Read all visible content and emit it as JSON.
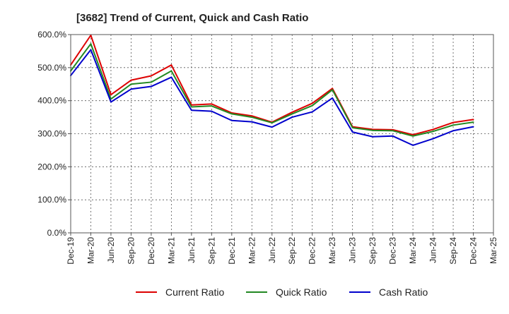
{
  "chart_data": {
    "type": "line",
    "title": "[3682]  Trend of Current, Quick and Cash Ratio",
    "xlabel": "",
    "ylabel": "",
    "grid": true,
    "legend_position": "bottom",
    "ylim": [
      0,
      600
    ],
    "y_ticks": [
      {
        "value": 0,
        "label": "0.0%"
      },
      {
        "value": 100,
        "label": "100.0%"
      },
      {
        "value": 200,
        "label": "200.0%"
      },
      {
        "value": 300,
        "label": "300.0%"
      },
      {
        "value": 400,
        "label": "400.0%"
      },
      {
        "value": 500,
        "label": "500.0%"
      },
      {
        "value": 600,
        "label": "600.0%"
      }
    ],
    "x_tick_labels": [
      "Dec-19",
      "Mar-20",
      "Jun-20",
      "Sep-20",
      "Dec-20",
      "Mar-21",
      "Jun-21",
      "Sep-21",
      "Dec-21",
      "Mar-22",
      "Jun-22",
      "Sep-22",
      "Dec-22",
      "Mar-23",
      "Jun-23",
      "Sep-23",
      "Dec-23",
      "Mar-24",
      "Jun-24",
      "Sep-24",
      "Dec-24",
      "Mar-25"
    ],
    "x_tick_step": 3,
    "x_max_month": 63,
    "points_months": [
      0,
      3,
      6,
      9,
      12,
      15,
      18,
      21,
      24,
      27,
      30,
      33,
      36,
      39,
      42,
      45,
      48,
      51,
      54,
      57,
      60
    ],
    "series": [
      {
        "name": "Current Ratio",
        "color": "#dd0000",
        "values": [
          508,
          598,
          418,
          462,
          475,
          508,
          387,
          390,
          363,
          354,
          335,
          365,
          392,
          437,
          321,
          313,
          312,
          297,
          313,
          334,
          343
        ]
      },
      {
        "name": "Quick Ratio",
        "color": "#228822",
        "values": [
          490,
          572,
          405,
          450,
          456,
          490,
          381,
          384,
          360,
          350,
          333,
          360,
          385,
          433,
          318,
          310,
          309,
          293,
          307,
          326,
          335
        ]
      },
      {
        "name": "Cash Ratio",
        "color": "#0000cc",
        "values": [
          476,
          554,
          396,
          435,
          443,
          471,
          371,
          368,
          340,
          336,
          320,
          350,
          366,
          408,
          305,
          291,
          293,
          265,
          285,
          309,
          321
        ]
      }
    ]
  }
}
